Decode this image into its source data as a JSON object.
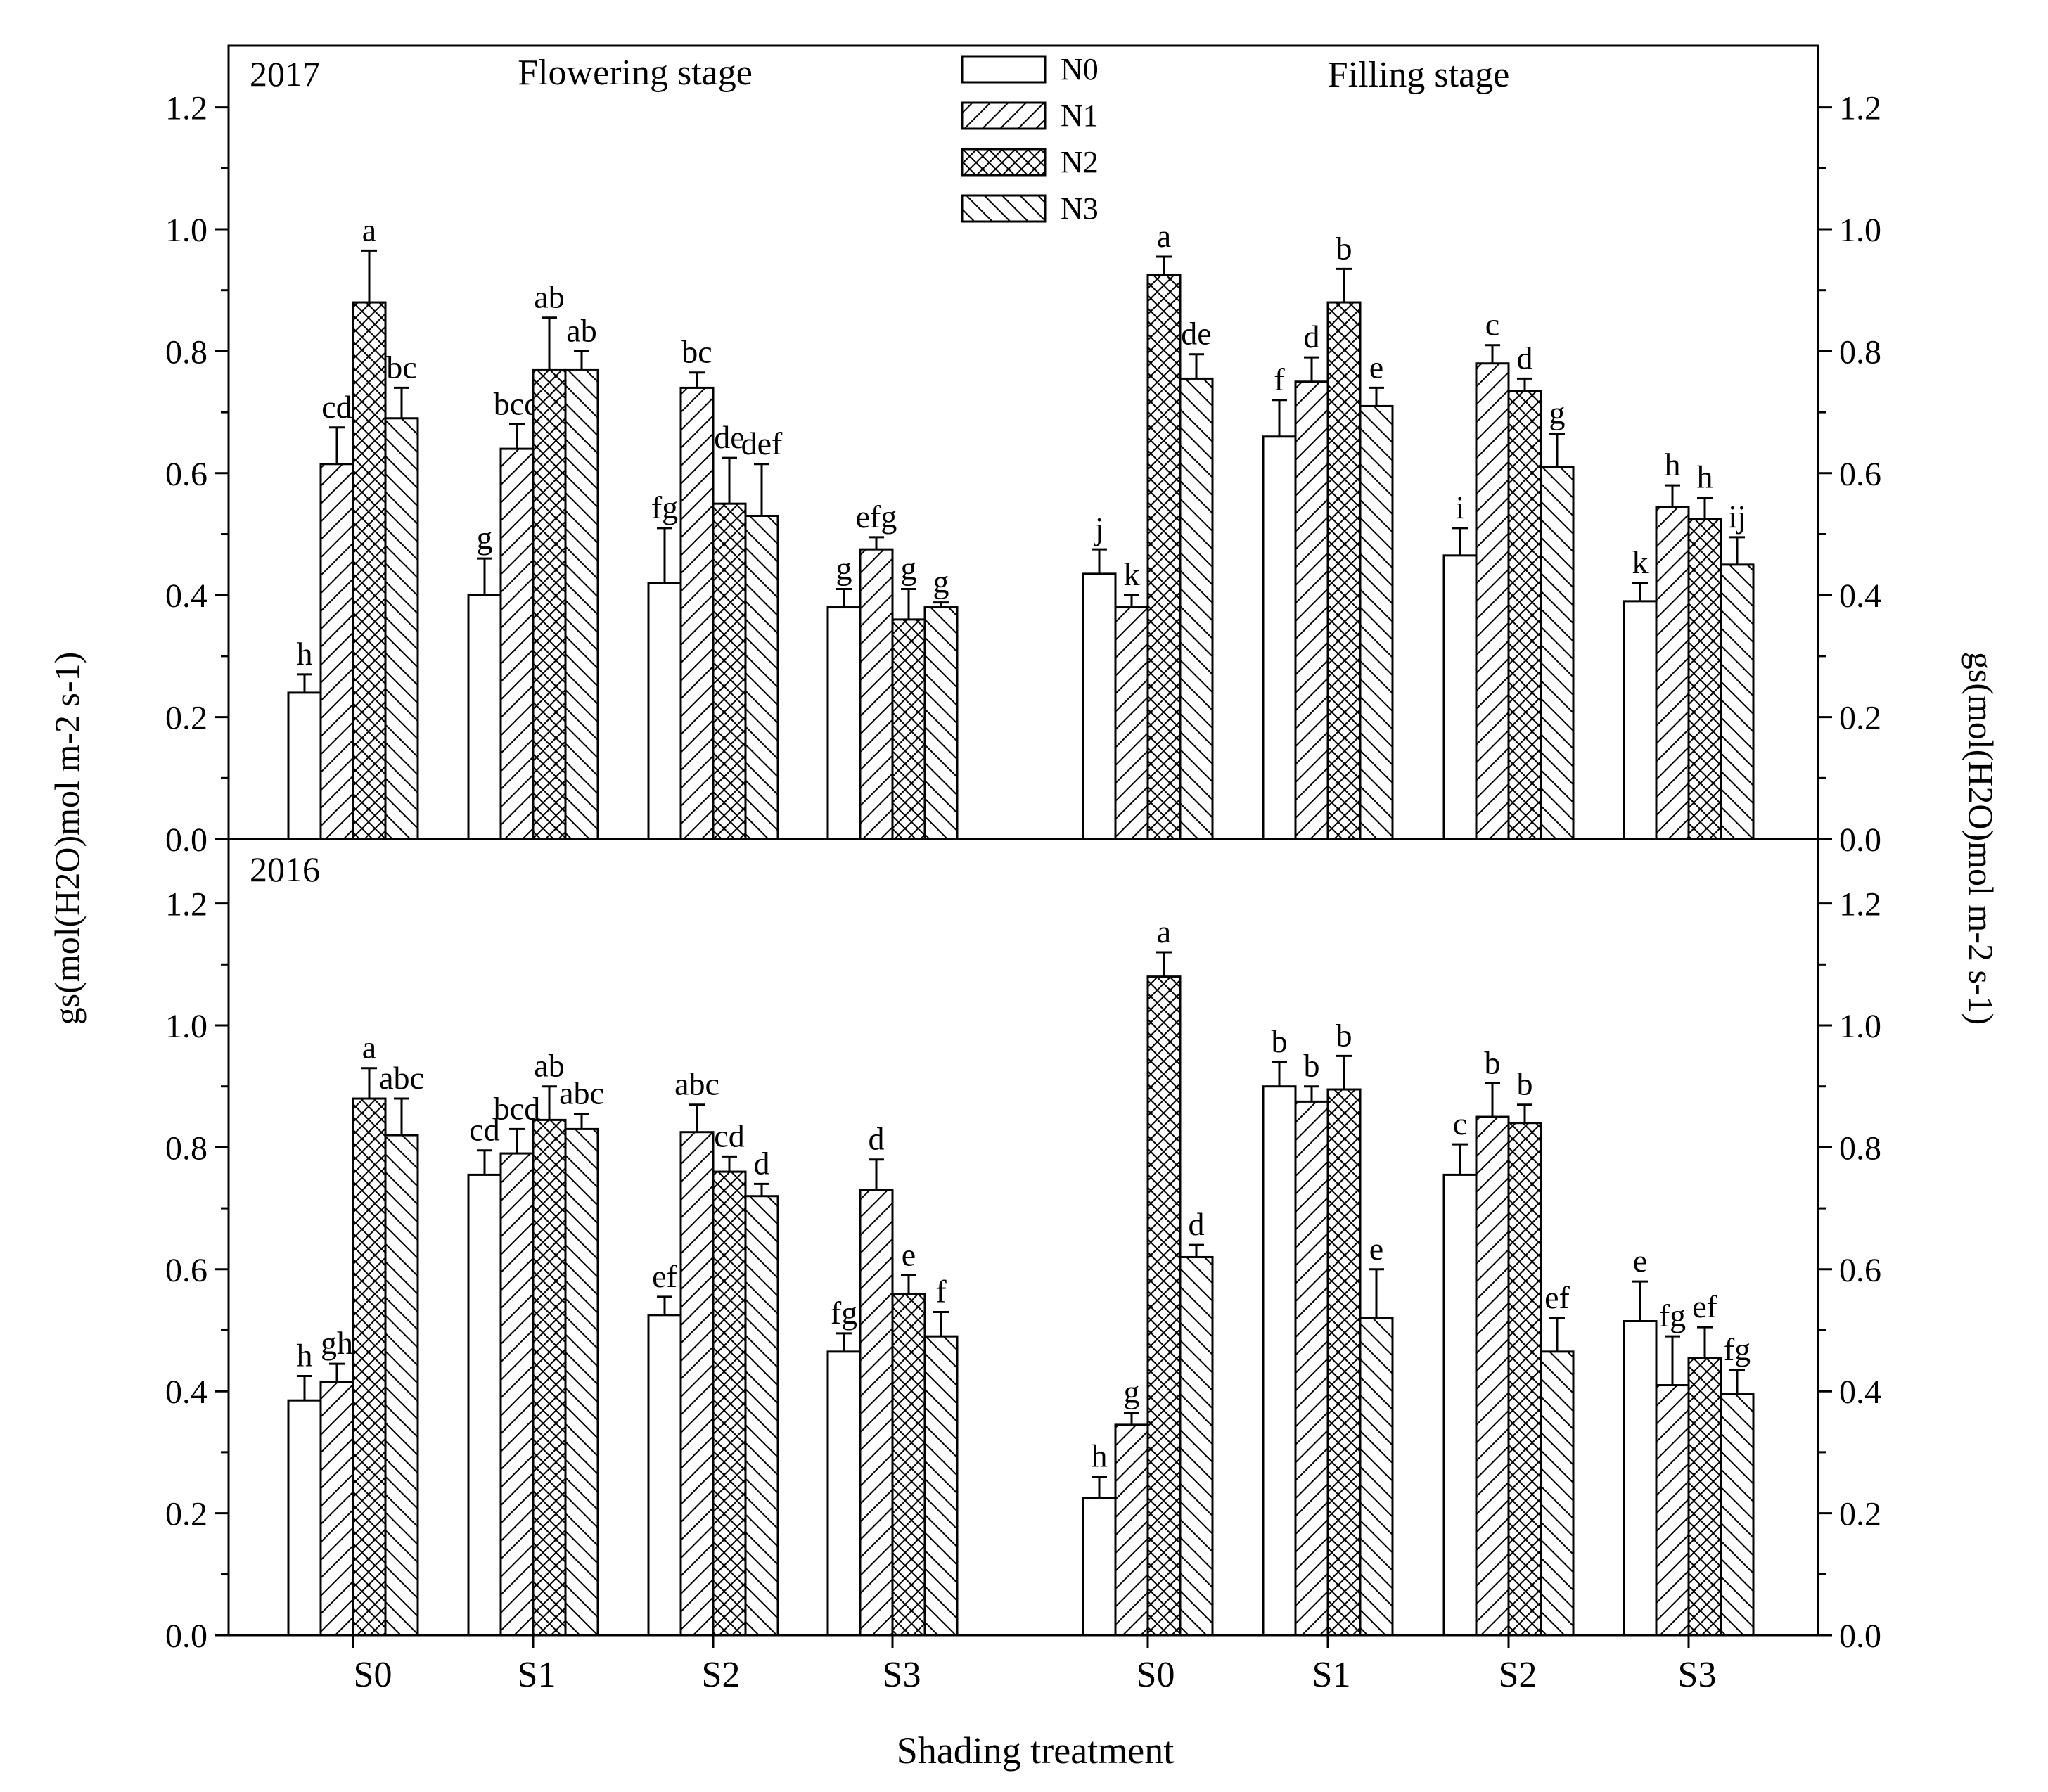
{
  "chart_data": {
    "type": "bar",
    "title": "",
    "xlabel": "Shading treatment",
    "ylabel_left": "gs(mol(H2O)mol m-2 s-1)",
    "ylabel_right": "gs(mol(H2O)mol m-2 s-1)",
    "ylim": [
      0,
      1.3
    ],
    "yticks": [
      "0.0",
      "0.2",
      "0.4",
      "0.6",
      "0.8",
      "1.0",
      "1.2"
    ],
    "legend_position": "top-center",
    "legend": [
      {
        "name": "N0",
        "pattern": "open"
      },
      {
        "name": "N1",
        "pattern": "diagonal-forward"
      },
      {
        "name": "N2",
        "pattern": "crosshatch"
      },
      {
        "name": "N3",
        "pattern": "diagonal-back"
      }
    ],
    "stage_labels": [
      "Flowering stage",
      "Filling stage"
    ],
    "categories": [
      "S0",
      "S1",
      "S2",
      "S3",
      "S0",
      "S1",
      "S2",
      "S3"
    ],
    "panels": [
      {
        "year": "2017",
        "groups": [
          {
            "category": "S0",
            "stage": "Flowering stage",
            "values": [
              0.24,
              0.615,
              0.88,
              0.69
            ],
            "errors": [
              0.03,
              0.06,
              0.085,
              0.05
            ],
            "letters": [
              "h",
              "cd",
              "a",
              "bc"
            ]
          },
          {
            "category": "S1",
            "stage": "Flowering stage",
            "values": [
              0.4,
              0.64,
              0.77,
              0.77
            ],
            "errors": [
              0.06,
              0.04,
              0.085,
              0.03
            ],
            "letters": [
              "g",
              "bcd",
              "ab",
              "ab"
            ]
          },
          {
            "category": "S2",
            "stage": "Flowering stage",
            "values": [
              0.42,
              0.74,
              0.55,
              0.53
            ],
            "errors": [
              0.09,
              0.025,
              0.075,
              0.085
            ],
            "letters": [
              "fg",
              "bc",
              "de",
              "def"
            ]
          },
          {
            "category": "S3",
            "stage": "Flowering stage",
            "values": [
              0.38,
              0.475,
              0.36,
              0.38
            ],
            "errors": [
              0.03,
              0.02,
              0.05,
              0.008
            ],
            "letters": [
              "g",
              "efg",
              "g",
              "g"
            ]
          },
          {
            "category": "S0",
            "stage": "Filling stage",
            "values": [
              0.435,
              0.38,
              0.925,
              0.755
            ],
            "errors": [
              0.04,
              0.02,
              0.03,
              0.04
            ],
            "letters": [
              "j",
              "k",
              "a",
              "de"
            ]
          },
          {
            "category": "S1",
            "stage": "Filling stage",
            "values": [
              0.66,
              0.75,
              0.88,
              0.71
            ],
            "errors": [
              0.06,
              0.04,
              0.055,
              0.03
            ],
            "letters": [
              "f",
              "d",
              "b",
              "e"
            ]
          },
          {
            "category": "S2",
            "stage": "Filling stage",
            "values": [
              0.465,
              0.78,
              0.735,
              0.61
            ],
            "errors": [
              0.045,
              0.03,
              0.02,
              0.055
            ],
            "letters": [
              "i",
              "c",
              "d",
              "g"
            ]
          },
          {
            "category": "S3",
            "stage": "Filling stage",
            "values": [
              0.39,
              0.545,
              0.525,
              0.45
            ],
            "errors": [
              0.03,
              0.035,
              0.035,
              0.045
            ],
            "letters": [
              "k",
              "h",
              "h",
              "ij"
            ]
          }
        ]
      },
      {
        "year": "2016",
        "groups": [
          {
            "category": "S0",
            "stage": "Flowering stage",
            "values": [
              0.385,
              0.415,
              0.88,
              0.82
            ],
            "errors": [
              0.04,
              0.03,
              0.05,
              0.06
            ],
            "letters": [
              "h",
              "gh",
              "a",
              "abc"
            ]
          },
          {
            "category": "S1",
            "stage": "Flowering stage",
            "values": [
              0.755,
              0.79,
              0.845,
              0.83
            ],
            "errors": [
              0.04,
              0.04,
              0.055,
              0.025
            ],
            "letters": [
              "cd",
              "bcd",
              "ab",
              "abc"
            ]
          },
          {
            "category": "S2",
            "stage": "Flowering stage",
            "values": [
              0.525,
              0.825,
              0.76,
              0.72
            ],
            "errors": [
              0.03,
              0.045,
              0.025,
              0.02
            ],
            "letters": [
              "ef",
              "abc",
              "cd",
              "d"
            ]
          },
          {
            "category": "S3",
            "stage": "Flowering stage",
            "values": [
              0.465,
              0.73,
              0.56,
              0.49
            ],
            "errors": [
              0.03,
              0.05,
              0.03,
              0.04
            ],
            "letters": [
              "fg",
              "d",
              "e",
              "f"
            ]
          },
          {
            "category": "S0",
            "stage": "Filling stage",
            "values": [
              0.225,
              0.345,
              1.08,
              0.62
            ],
            "errors": [
              0.035,
              0.02,
              0.04,
              0.02
            ],
            "letters": [
              "h",
              "g",
              "a",
              "d"
            ]
          },
          {
            "category": "S1",
            "stage": "Filling stage",
            "values": [
              0.9,
              0.875,
              0.895,
              0.52
            ],
            "errors": [
              0.04,
              0.025,
              0.055,
              0.08
            ],
            "letters": [
              "b",
              "b",
              "b",
              "e"
            ]
          },
          {
            "category": "S2",
            "stage": "Filling stage",
            "values": [
              0.755,
              0.85,
              0.84,
              0.465
            ],
            "errors": [
              0.05,
              0.055,
              0.03,
              0.055
            ],
            "letters": [
              "c",
              "b",
              "b",
              "ef"
            ]
          },
          {
            "category": "S3",
            "stage": "Filling stage",
            "values": [
              0.515,
              0.41,
              0.455,
              0.395
            ],
            "errors": [
              0.065,
              0.08,
              0.05,
              0.04
            ],
            "letters": [
              "e",
              "fg",
              "ef",
              "fg"
            ]
          }
        ]
      }
    ]
  }
}
